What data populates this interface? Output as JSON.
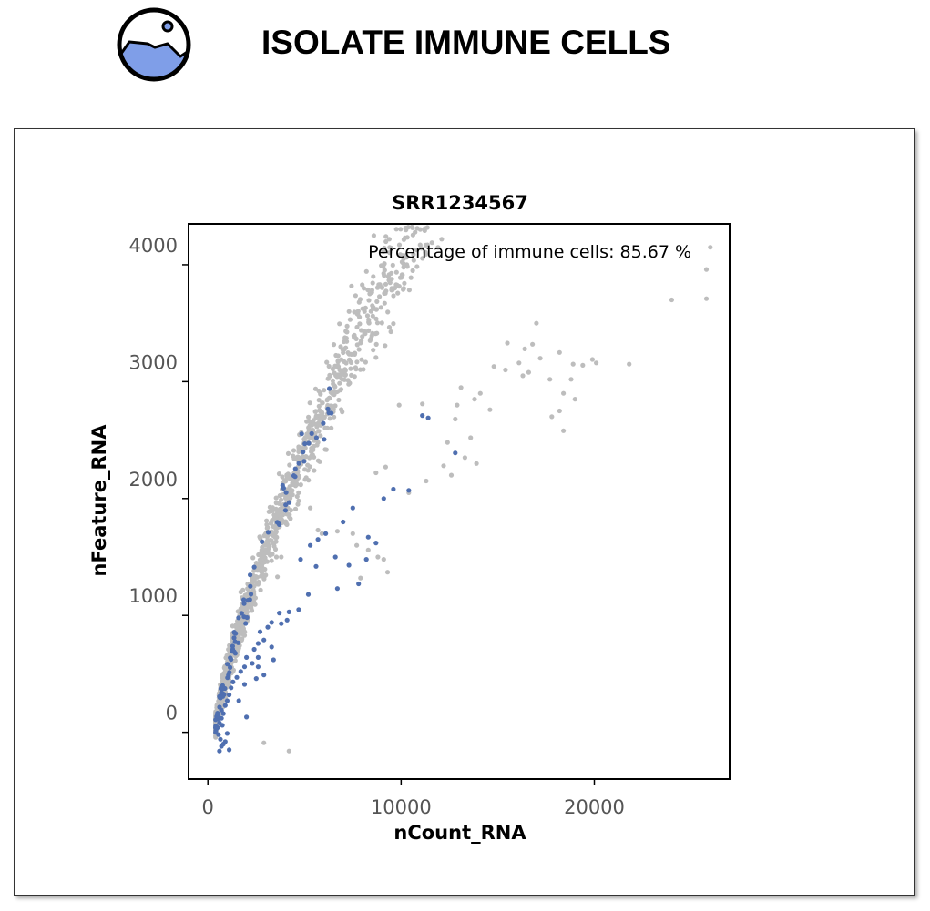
{
  "header": {
    "title": "ISOLATE IMMUNE CELLS",
    "logo_icon": "image-landscape-icon",
    "logo_color": "#7f9ee8"
  },
  "chart_data": {
    "type": "scatter",
    "title": "SRR1234567",
    "xlabel": "nCount_RNA",
    "ylabel": "nFeature_RNA",
    "annotation": "Percentage of immune cells:  85.67 %",
    "xlim": [
      -1000,
      27000
    ],
    "ylim": [
      -400,
      4350
    ],
    "x_ticks": [
      0,
      10000,
      20000
    ],
    "x_tick_labels": [
      "0",
      "10000",
      "20000"
    ],
    "y_ticks": [
      0,
      1000,
      2000,
      3000,
      4000
    ],
    "y_tick_labels": [
      "0",
      "1000",
      "2000",
      "3000",
      "4000"
    ],
    "grid": false,
    "series": [
      {
        "color": "#bdbdbd",
        "trend": "main",
        "points": [
          [
            10600,
            3950
          ],
          [
            26000,
            4150
          ],
          [
            25800,
            3960
          ],
          [
            24000,
            3700
          ],
          [
            25800,
            3710
          ],
          [
            17000,
            3500
          ],
          [
            15500,
            3330
          ],
          [
            16400,
            3280
          ],
          [
            16800,
            3320
          ],
          [
            18200,
            3250
          ],
          [
            17200,
            3200
          ],
          [
            16100,
            3160
          ],
          [
            14800,
            3130
          ],
          [
            15400,
            3100
          ],
          [
            16600,
            3080
          ],
          [
            16300,
            3050
          ],
          [
            17700,
            3020
          ],
          [
            18900,
            3150
          ],
          [
            19400,
            3140
          ],
          [
            19900,
            3190
          ],
          [
            20100,
            3160
          ],
          [
            21800,
            3150
          ],
          [
            18800,
            3020
          ],
          [
            18400,
            2900
          ],
          [
            19000,
            2850
          ],
          [
            18200,
            2750
          ],
          [
            17800,
            2700
          ],
          [
            18400,
            2580
          ],
          [
            12900,
            2800
          ],
          [
            11100,
            2810
          ],
          [
            9900,
            2800
          ],
          [
            13100,
            2950
          ],
          [
            14100,
            2900
          ],
          [
            13800,
            2850
          ],
          [
            14600,
            2760
          ],
          [
            13600,
            2520
          ],
          [
            12800,
            2680
          ],
          [
            12400,
            2480
          ],
          [
            13300,
            2350
          ],
          [
            13900,
            2300
          ],
          [
            12200,
            2280
          ],
          [
            12600,
            2200
          ],
          [
            11300,
            2150
          ],
          [
            10400,
            2050
          ],
          [
            9200,
            2270
          ],
          [
            8700,
            2220
          ],
          [
            4700,
            1980
          ],
          [
            5300,
            1920
          ],
          [
            4300,
            1900
          ],
          [
            7500,
            1700
          ],
          [
            8300,
            1560
          ],
          [
            8800,
            1500
          ],
          [
            9100,
            1480
          ],
          [
            7700,
            1600
          ],
          [
            9300,
            1370
          ],
          [
            5700,
            1730
          ],
          [
            5900,
            1700
          ],
          [
            6700,
            1720
          ],
          [
            7900,
            1320
          ],
          [
            3600,
            1330
          ],
          [
            3800,
            1500
          ],
          [
            2700,
            1530
          ],
          [
            1700,
            1200
          ],
          [
            2200,
            1100
          ],
          [
            1100,
            640
          ],
          [
            1200,
            560
          ],
          [
            1300,
            520
          ],
          [
            900,
            330
          ],
          [
            800,
            220
          ],
          [
            1600,
            720
          ],
          [
            2900,
            -90
          ],
          [
            4200,
            -160
          ]
        ]
      },
      {
        "color": "#4f6fb0",
        "trend": "sparse",
        "points": [
          [
            11100,
            2710
          ],
          [
            11400,
            2690
          ],
          [
            12800,
            2390
          ],
          [
            10400,
            2070
          ],
          [
            9600,
            2080
          ],
          [
            9100,
            2000
          ],
          [
            7500,
            1920
          ],
          [
            7000,
            1800
          ],
          [
            8300,
            1670
          ],
          [
            8700,
            1620
          ],
          [
            6100,
            1700
          ],
          [
            5700,
            1650
          ],
          [
            5300,
            1600
          ],
          [
            4800,
            1480
          ],
          [
            5600,
            1420
          ],
          [
            6600,
            1500
          ],
          [
            7300,
            1430
          ],
          [
            8200,
            1480
          ],
          [
            7800,
            1270
          ],
          [
            6700,
            1230
          ],
          [
            5200,
            1180
          ],
          [
            4700,
            1050
          ],
          [
            4200,
            1030
          ],
          [
            4100,
            960
          ],
          [
            3700,
            1020
          ],
          [
            3800,
            930
          ],
          [
            3300,
            940
          ],
          [
            3100,
            900
          ],
          [
            2900,
            790
          ],
          [
            2700,
            860
          ],
          [
            2600,
            760
          ],
          [
            2400,
            710
          ],
          [
            3300,
            730
          ],
          [
            3400,
            620
          ],
          [
            2600,
            640
          ],
          [
            2300,
            590
          ],
          [
            2000,
            640
          ],
          [
            1900,
            560
          ],
          [
            1700,
            520
          ],
          [
            1500,
            470
          ],
          [
            1300,
            430
          ],
          [
            1200,
            380
          ],
          [
            1100,
            320
          ],
          [
            1000,
            270
          ],
          [
            900,
            230
          ],
          [
            800,
            160
          ],
          [
            700,
            120
          ],
          [
            600,
            80
          ],
          [
            500,
            40
          ],
          [
            550,
            -20
          ],
          [
            650,
            -60
          ],
          [
            700,
            -120
          ],
          [
            800,
            -100
          ],
          [
            900,
            -80
          ],
          [
            1000,
            -10
          ],
          [
            1100,
            -150
          ],
          [
            1600,
            270
          ],
          [
            1900,
            410
          ],
          [
            2000,
            130
          ],
          [
            2500,
            460
          ],
          [
            2600,
            560
          ],
          [
            2900,
            490
          ],
          [
            700,
            190
          ],
          [
            750,
            60
          ],
          [
            600,
            -160
          ]
        ]
      }
    ]
  }
}
